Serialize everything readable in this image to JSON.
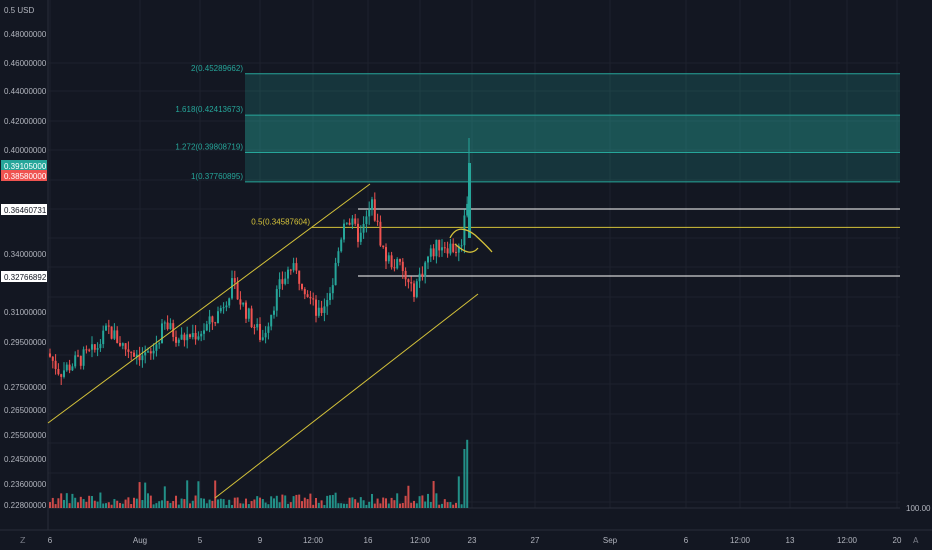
{
  "chart_data": {
    "type": "candlestick",
    "price_axis": {
      "unit_label": "USD",
      "top_label": "0.5",
      "ticks": [
        "0.48000000",
        "0.46000000",
        "0.44000000",
        "0.42000000",
        "0.40000000",
        "0.34000000",
        "0.31000000",
        "0.29500000",
        "0.27500000",
        "0.26500000",
        "0.25500000",
        "0.24500000",
        "0.23600000",
        "0.22800000"
      ],
      "tick_values": [
        0.48,
        0.46,
        0.44,
        0.42,
        0.4,
        0.34,
        0.31,
        0.295,
        0.275,
        0.265,
        0.255,
        0.245,
        0.236,
        0.228
      ]
    },
    "price_badges": [
      {
        "text": "0.39105000",
        "value": 0.39105,
        "color": "#26a69a"
      },
      {
        "text": "0.38580000",
        "value": 0.3858,
        "color": "#ef5350"
      },
      {
        "text": "0.36460731",
        "value": 0.36460731,
        "color": "#ffffff"
      },
      {
        "text": "0.32766892",
        "value": 0.32766892,
        "color": "#ffffff"
      }
    ],
    "x_axis": {
      "labels": [
        "6",
        "Aug",
        "5",
        "9",
        "12:00",
        "16",
        "12:00",
        "23",
        "27",
        "Sep",
        "6",
        "12:00",
        "13",
        "12:00",
        "20"
      ]
    },
    "fib_levels": [
      {
        "label": "2(0.45289662)",
        "value": 0.45289662
      },
      {
        "label": "1.618(0.42413673)",
        "value": 0.42413673
      },
      {
        "label": "1.272(0.39808719)",
        "value": 0.39808719
      },
      {
        "label": "1(0.37760895)",
        "value": 0.37760895
      },
      {
        "label": "0.5(0.34587604)",
        "value": 0.34587604
      }
    ],
    "horizontal_lines": [
      0.36460731,
      0.32766892
    ],
    "volume_label": "100.00",
    "colors": {
      "up": "#26a69a",
      "down": "#ef5350",
      "channel": "#d4c23a",
      "fib": "#26a69a",
      "background": "#131722"
    }
  },
  "ui": {
    "bottom_left_icon": "Z",
    "bottom_right_icon": "A"
  }
}
